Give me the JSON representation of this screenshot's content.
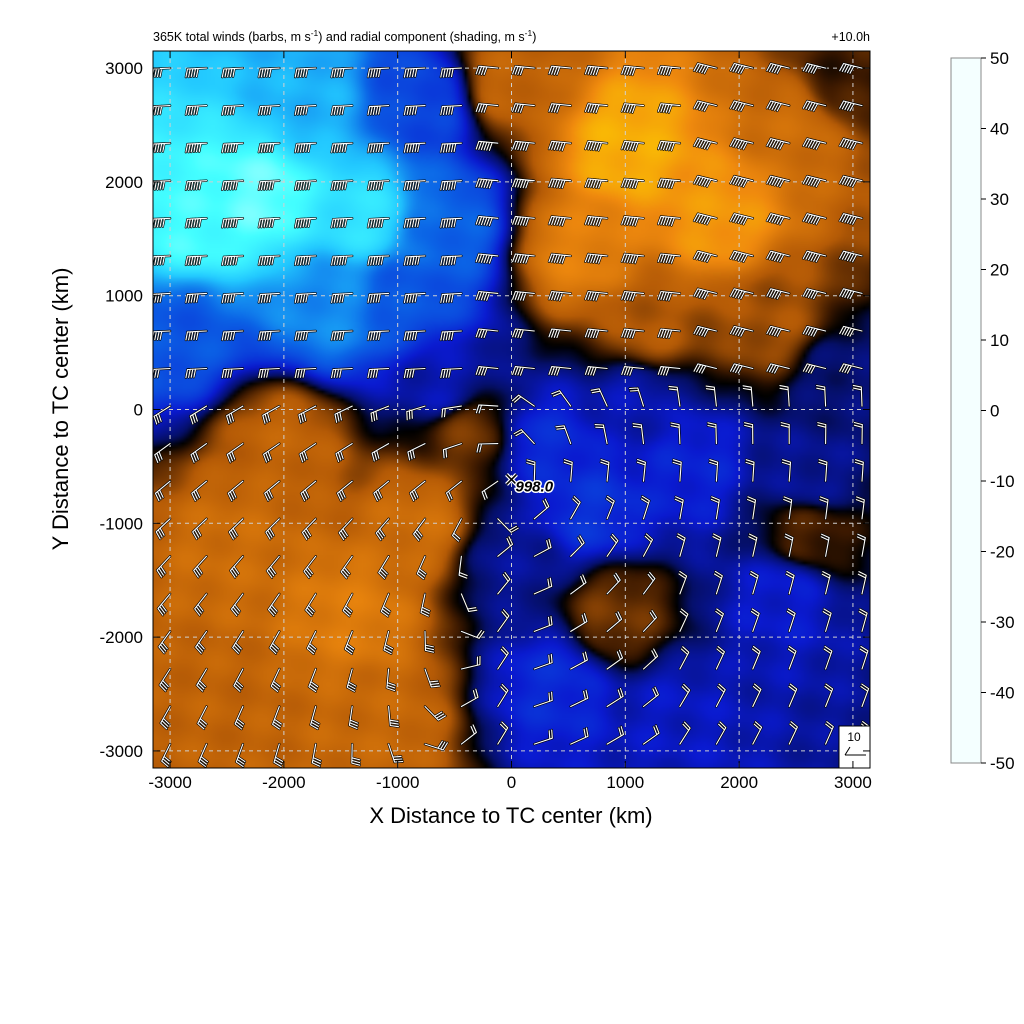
{
  "chart_data": {
    "type": "heatmap",
    "title": "365K total winds (barbs, m s-1) and radial component (shading, m s-1)",
    "title_parts": {
      "a": "365K total winds (barbs, m s",
      "b": ") and radial component (shading, m s",
      "c": ")",
      "sup": "-1"
    },
    "time_label": "+10.0h",
    "xlabel": "X Distance to TC center (km)",
    "ylabel": "Y Distance to TC center (km)",
    "xlim": [
      -3150,
      3150
    ],
    "ylim": [
      -3150,
      3150
    ],
    "xticks": [
      -3000,
      -2000,
      -1000,
      0,
      1000,
      2000,
      3000
    ],
    "yticks": [
      -3000,
      -2000,
      -1000,
      0,
      1000,
      2000,
      3000
    ],
    "grid": true,
    "center_marker": {
      "x": 0,
      "y": -650,
      "label": "998.0"
    },
    "reference_barb": {
      "label": "10"
    },
    "colorbar": {
      "vmin": -50,
      "vmax": 50,
      "ticks": [
        50,
        40,
        30,
        20,
        10,
        0,
        -10,
        -20,
        -30,
        -40,
        -50
      ],
      "stops": [
        {
          "value": -50,
          "color": "#f4ffff"
        },
        {
          "value": -40,
          "color": "#44ffff"
        },
        {
          "value": -30,
          "color": "#22c8ff"
        },
        {
          "value": -20,
          "color": "#0b64e6"
        },
        {
          "value": -10,
          "color": "#0a1ad0"
        },
        {
          "value": -3,
          "color": "#050f66"
        },
        {
          "value": 0,
          "color": "#000000"
        },
        {
          "value": 3,
          "color": "#3a1800"
        },
        {
          "value": 10,
          "color": "#b45a06"
        },
        {
          "value": 20,
          "color": "#f08a0e"
        },
        {
          "value": 30,
          "color": "#ffd200"
        },
        {
          "value": 40,
          "color": "#ffff22"
        },
        {
          "value": 50,
          "color": "#ffffff"
        }
      ]
    },
    "radial_field": [
      {
        "x": -2200,
        "y": 1900,
        "v": -42
      },
      {
        "x": -2800,
        "y": 1600,
        "v": -40
      },
      {
        "x": -1300,
        "y": 1700,
        "v": -35
      },
      {
        "x": -1800,
        "y": 2700,
        "v": -28
      },
      {
        "x": -800,
        "y": 2700,
        "v": -16
      },
      {
        "x": -1600,
        "y": 900,
        "v": -24
      },
      {
        "x": -900,
        "y": 1000,
        "v": -18
      },
      {
        "x": -2900,
        "y": 700,
        "v": -18
      },
      {
        "x": -600,
        "y": 1600,
        "v": -20
      },
      {
        "x": 1000,
        "y": 2300,
        "v": 25
      },
      {
        "x": 1800,
        "y": 1700,
        "v": 22
      },
      {
        "x": 600,
        "y": 1400,
        "v": 18
      },
      {
        "x": 2500,
        "y": 2500,
        "v": 14
      },
      {
        "x": 2900,
        "y": 2900,
        "v": 3
      },
      {
        "x": 1200,
        "y": 700,
        "v": 10
      },
      {
        "x": 2300,
        "y": 800,
        "v": 9
      },
      {
        "x": 0,
        "y": 2900,
        "v": 12
      },
      {
        "x": -2000,
        "y": -300,
        "v": 12
      },
      {
        "x": -2400,
        "y": -1200,
        "v": 14
      },
      {
        "x": -1400,
        "y": -1800,
        "v": 17
      },
      {
        "x": -800,
        "y": -1000,
        "v": 14
      },
      {
        "x": -2500,
        "y": -2600,
        "v": 12
      },
      {
        "x": -1200,
        "y": -2700,
        "v": 13
      },
      {
        "x": -400,
        "y": -200,
        "v": 6
      },
      {
        "x": -600,
        "y": 200,
        "v": -8
      },
      {
        "x": 300,
        "y": -300,
        "v": -12
      },
      {
        "x": 700,
        "y": -900,
        "v": -13
      },
      {
        "x": 1600,
        "y": -500,
        "v": -11
      },
      {
        "x": 400,
        "y": -2400,
        "v": -12
      },
      {
        "x": 1400,
        "y": -2700,
        "v": -9
      },
      {
        "x": 2400,
        "y": -1600,
        "v": -10
      },
      {
        "x": 1100,
        "y": 100,
        "v": -8
      },
      {
        "x": 2600,
        "y": -600,
        "v": -6
      },
      {
        "x": 900,
        "y": -1800,
        "v": 6
      },
      {
        "x": 2600,
        "y": -1100,
        "v": 4
      },
      {
        "x": 0,
        "y": -1300,
        "v": -6
      },
      {
        "x": 2900,
        "y": 300,
        "v": -4
      }
    ]
  }
}
